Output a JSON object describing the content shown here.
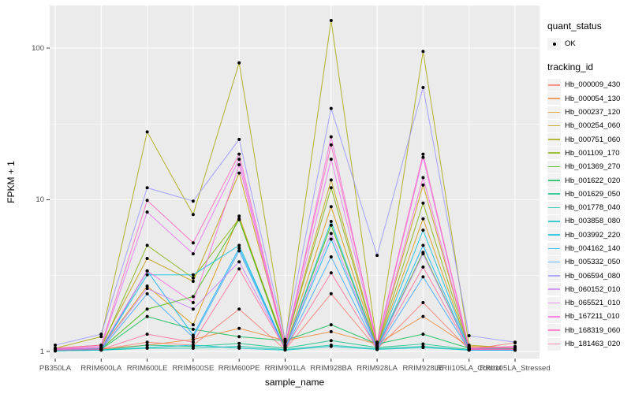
{
  "axes": {
    "y": {
      "title": "FPKM + 1"
    },
    "x": {
      "title": "sample_name"
    }
  },
  "legend": {
    "quant_status": {
      "title": "quant_status",
      "items": [
        {
          "label": "OK",
          "shape": "point"
        }
      ]
    },
    "tracking_id": {
      "title": "tracking_id"
    }
  },
  "style": {
    "panel_bg": "#ebebeb",
    "grid_color": "#ffffff",
    "tick_label_color": "#4d4d4d",
    "tick_color": "#333333",
    "point_color": "#000000",
    "legend_key_bg": "#f2f2f2"
  },
  "chart_data": {
    "type": "line",
    "title": "",
    "xlabel": "sample_name",
    "ylabel": "FPKM + 1",
    "y_scale": "log10",
    "y_ticks": [
      1,
      10,
      100
    ],
    "y_minor_ticks": [
      3.162,
      31.62
    ],
    "ylim": [
      0.9,
      190
    ],
    "grid": true,
    "legend_position": "right",
    "point_legend": {
      "title": "quant_status",
      "label": "OK"
    },
    "series_legend_title": "tracking_id",
    "categories": [
      "PB350LA",
      "RRIM600LA",
      "RRIM600LE",
      "RRIM600SE",
      "RRIM600PE",
      "RRIM901LA",
      "RRIM928BA",
      "RRIM928LA",
      "RRIM928LE",
      "RRII105LA_Control",
      "RRII105LA_Stressed"
    ],
    "series": [
      {
        "name": "Hb_000009_430",
        "color": "#F8766D",
        "values": [
          1.02,
          1.03,
          1.15,
          1.1,
          1.9,
          1.03,
          2.4,
          1.04,
          2.1,
          1.03,
          1.14
        ]
      },
      {
        "name": "Hb_000054_130",
        "color": "#EA8331",
        "values": [
          1.03,
          1.04,
          1.1,
          1.2,
          1.42,
          1.18,
          1.35,
          1.12,
          1.7,
          1.08,
          1.06
        ]
      },
      {
        "name": "Hb_000237_120",
        "color": "#D89000",
        "values": [
          1.04,
          1.05,
          2.7,
          1.5,
          7.8,
          1.05,
          9.0,
          1.06,
          7.5,
          1.04,
          1.03
        ]
      },
      {
        "name": "Hb_000254_060",
        "color": "#C09B00",
        "values": [
          1.05,
          1.1,
          4.1,
          2.9,
          15.0,
          1.1,
          13.5,
          1.08,
          12.5,
          1.06,
          1.04
        ]
      },
      {
        "name": "Hb_000751_060",
        "color": "#A3A500",
        "values": [
          1.05,
          1.25,
          28.0,
          8.0,
          80.0,
          1.15,
          152.0,
          1.1,
          95.0,
          1.1,
          1.05
        ]
      },
      {
        "name": "Hb_001109_170",
        "color": "#7CAE00",
        "values": [
          1.03,
          1.05,
          5.0,
          3.05,
          7.5,
          1.1,
          12.0,
          1.07,
          9.5,
          1.05,
          1.04
        ]
      },
      {
        "name": "Hb_001369_270",
        "color": "#39B600",
        "values": [
          1.02,
          1.04,
          1.9,
          2.3,
          7.4,
          1.05,
          6.8,
          1.05,
          4.5,
          1.03,
          1.03
        ]
      },
      {
        "name": "Hb_001622_020",
        "color": "#00BB4E",
        "values": [
          1.02,
          1.03,
          1.7,
          1.4,
          1.25,
          1.18,
          1.5,
          1.12,
          1.3,
          1.05,
          1.04
        ]
      },
      {
        "name": "Hb_001629_050",
        "color": "#00BF7D",
        "values": [
          1.01,
          1.02,
          1.1,
          1.08,
          1.13,
          1.05,
          1.18,
          1.06,
          1.12,
          1.03,
          1.03
        ]
      },
      {
        "name": "Hb_001778_040",
        "color": "#00C1A3",
        "values": [
          1.01,
          1.02,
          1.05,
          1.05,
          1.08,
          1.03,
          1.1,
          1.04,
          1.08,
          1.02,
          1.02
        ]
      },
      {
        "name": "Hb_003858_080",
        "color": "#00BFC4",
        "values": [
          1.01,
          1.02,
          1.06,
          1.1,
          1.05,
          1.02,
          1.08,
          1.03,
          1.06,
          1.02,
          1.02
        ]
      },
      {
        "name": "Hb_003992_220",
        "color": "#00BBDA",
        "values": [
          1.03,
          1.04,
          3.2,
          3.2,
          5.0,
          1.04,
          7.2,
          1.05,
          6.3,
          1.04,
          1.03
        ]
      },
      {
        "name": "Hb_004162_140",
        "color": "#00B0F6",
        "values": [
          1.02,
          1.03,
          3.4,
          1.28,
          4.8,
          1.04,
          5.5,
          1.04,
          5.0,
          1.03,
          1.02
        ]
      },
      {
        "name": "Hb_005332_050",
        "color": "#35A2FF",
        "values": [
          1.02,
          1.03,
          2.4,
          1.24,
          4.6,
          1.03,
          4.2,
          1.03,
          3.1,
          1.02,
          1.02
        ]
      },
      {
        "name": "Hb_006594_080",
        "color": "#9590FF",
        "values": [
          1.1,
          1.3,
          12.0,
          9.8,
          25.0,
          1.2,
          40.0,
          4.3,
          55.0,
          1.27,
          1.15
        ]
      },
      {
        "name": "Hb_060152_010",
        "color": "#C77CFF",
        "values": [
          1.03,
          1.05,
          2.6,
          1.9,
          3.9,
          1.05,
          6.0,
          1.04,
          4.4,
          1.03,
          1.03
        ]
      },
      {
        "name": "Hb_065521_010",
        "color": "#E76BF3",
        "values": [
          1.04,
          1.08,
          8.3,
          4.4,
          18.5,
          1.08,
          18.5,
          1.12,
          19.0,
          1.04,
          1.06
        ]
      },
      {
        "name": "Hb_167211_010",
        "color": "#FA62DB",
        "values": [
          1.03,
          1.06,
          3.4,
          2.1,
          17.0,
          1.06,
          26.0,
          1.1,
          14.0,
          1.05,
          1.05
        ]
      },
      {
        "name": "Hb_168319_060",
        "color": "#FF62BC",
        "values": [
          1.05,
          1.1,
          9.9,
          5.2,
          20.0,
          1.1,
          23.0,
          1.15,
          20.0,
          1.05,
          1.08
        ]
      },
      {
        "name": "Hb_181463_020",
        "color": "#FF6A98",
        "values": [
          1.02,
          1.03,
          1.3,
          1.15,
          3.5,
          1.04,
          3.3,
          1.05,
          3.6,
          1.03,
          1.03
        ]
      }
    ]
  }
}
